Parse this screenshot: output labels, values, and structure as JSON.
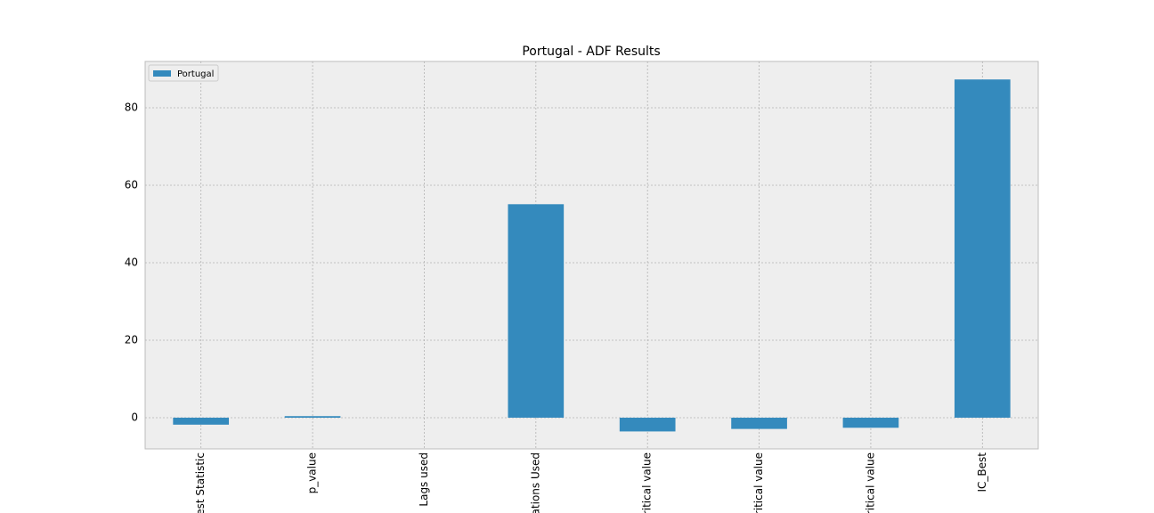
{
  "chart_data": {
    "type": "bar",
    "title": "Portugal - ADF Results",
    "categories": [
      "est Statistic",
      "p_value",
      "Lags used",
      "ations Used",
      "ritical value",
      "ritical value",
      "ritical value",
      "IC_Best"
    ],
    "series": [
      {
        "name": "Portugal",
        "color": "#348abd",
        "values": [
          -1.8,
          0.4,
          0,
          55.1,
          -3.55,
          -2.9,
          -2.6,
          87.3
        ]
      }
    ],
    "ylim": [
      -8.05,
      91.95
    ],
    "yticks": [
      0,
      20,
      40,
      60,
      80
    ],
    "grid": true,
    "legend": "upper left"
  }
}
